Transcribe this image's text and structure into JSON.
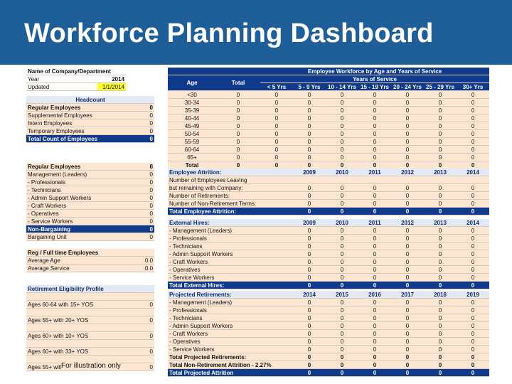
{
  "title": "Workforce Planning Dashboard",
  "watermark": "For illustration only",
  "info": {
    "company_label": "Name of Company/Department",
    "year_label": "Year",
    "year_value": "2014",
    "updated_label": "Updated",
    "updated_value": "1/1/2014"
  },
  "headcount": {
    "header": "Headcount",
    "rows": [
      {
        "label": "Regular Employees",
        "value": "0",
        "bold": true
      },
      {
        "label": "Supplemental Employees",
        "value": "0"
      },
      {
        "label": "Intern Employees",
        "value": "0"
      },
      {
        "label": "Temporary Employees",
        "value": "0"
      },
      {
        "label": "Total Count of Employees",
        "value": "0",
        "total": true
      }
    ]
  },
  "regular_breakdown": {
    "rows": [
      {
        "label": "Regular Employees",
        "value": "0",
        "bold": true
      },
      {
        "label": "   Management (Leaders)",
        "value": "0"
      },
      {
        "label": "- Professionals",
        "value": "0"
      },
      {
        "label": "- Technicians",
        "value": "0"
      },
      {
        "label": "- Admin Support Workers",
        "value": "0"
      },
      {
        "label": "- Craft Workers",
        "value": "0"
      },
      {
        "label": "- Operatives",
        "value": "0"
      },
      {
        "label": "- Service Workers",
        "value": "0"
      },
      {
        "label": "Non-Bargaining",
        "value": "0",
        "highlight": true
      },
      {
        "label": "Bargaining Unit",
        "value": "0"
      }
    ]
  },
  "fulltime": {
    "header": "Reg / Full time Employees",
    "rows": [
      {
        "label": "Average Age",
        "value": "0.0"
      },
      {
        "label": "Average Service",
        "value": "0.0"
      }
    ]
  },
  "retirement_eligibility": {
    "header": "Retirement Eligibility Profile",
    "rows": [
      {
        "label": "Ages 60-64 with 15+ YOS",
        "value": "0"
      },
      {
        "label": "Ages 55+ with 20+ YOS",
        "value": "0"
      },
      {
        "label": "Ages 60+ with 10+ YOS",
        "value": "0"
      },
      {
        "label": "Ages 60+ with 33+ YOS",
        "value": "0"
      },
      {
        "label": "Ages 55+ with 5+ YOS:",
        "value": "0"
      }
    ]
  },
  "workforce": {
    "title": "Employee Workforce by Age and Years of Service",
    "age_header": "Age",
    "total_header": "Total",
    "yos_header": "Years of Service",
    "columns": [
      "< 5 Yrs",
      "5 - 9 Yrs",
      "10 - 14 Yrs",
      "15 - 19 Yrs",
      "20 - 24 Yrs",
      "25 - 29 Yrs",
      "30+ Yrs"
    ],
    "rows": [
      {
        "age": "<30",
        "values": [
          "0",
          "0",
          "0",
          "0",
          "0",
          "0",
          "0",
          "0"
        ]
      },
      {
        "age": "30-34",
        "values": [
          "0",
          "0",
          "0",
          "0",
          "0",
          "0",
          "0",
          "0"
        ]
      },
      {
        "age": "35-39",
        "values": [
          "0",
          "0",
          "0",
          "0",
          "0",
          "0",
          "0",
          "0"
        ]
      },
      {
        "age": "40-44",
        "values": [
          "0",
          "0",
          "0",
          "0",
          "0",
          "0",
          "0",
          "0"
        ]
      },
      {
        "age": "45-49",
        "values": [
          "0",
          "0",
          "0",
          "0",
          "0",
          "0",
          "0",
          "0"
        ]
      },
      {
        "age": "50-54",
        "values": [
          "0",
          "0",
          "0",
          "0",
          "0",
          "0",
          "0",
          "0"
        ]
      },
      {
        "age": "55-59",
        "values": [
          "0",
          "0",
          "0",
          "0",
          "0",
          "0",
          "0",
          "0"
        ]
      },
      {
        "age": "60-64",
        "values": [
          "0",
          "0",
          "0",
          "0",
          "0",
          "0",
          "0",
          "0"
        ]
      },
      {
        "age": "65+",
        "values": [
          "0",
          "0",
          "0",
          "0",
          "0",
          "0",
          "0",
          "0"
        ]
      },
      {
        "age": "Total",
        "values": [
          "0",
          "0",
          "0",
          "0",
          "0",
          "0",
          "0",
          "0"
        ]
      }
    ]
  },
  "attrition": {
    "header": "Employee Attrition:",
    "years": [
      "2009",
      "2010",
      "2011",
      "2012",
      "2013",
      "2014"
    ],
    "rows": [
      {
        "label": "Number of Employees Leaving",
        "values": [
          "",
          "",
          "",
          "",
          "",
          ""
        ]
      },
      {
        "label": " but remaining with Company:",
        "values": [
          "0",
          "0",
          "0",
          "0",
          "0",
          "0"
        ]
      },
      {
        "label": "Number of Retirements:",
        "values": [
          "0",
          "0",
          "0",
          "0",
          "0",
          "0"
        ]
      },
      {
        "label": "Number of Non-Retirement Terms:",
        "values": [
          "0",
          "0",
          "0",
          "0",
          "0",
          "0"
        ]
      }
    ],
    "total": {
      "label": "Total Employee Attrition:",
      "values": [
        "0",
        "0",
        "0",
        "0",
        "0",
        "0"
      ]
    }
  },
  "external_hires": {
    "header": "External Hires:",
    "years": [
      "2009",
      "2010",
      "2011",
      "2012",
      "2013",
      "2014"
    ],
    "rows": [
      {
        "label": "- Management (Leaders)",
        "values": [
          "0",
          "0",
          "0",
          "0",
          "0",
          "0"
        ]
      },
      {
        "label": "- Professionals",
        "values": [
          "0",
          "0",
          "0",
          "0",
          "0",
          "0"
        ]
      },
      {
        "label": "- Technicians",
        "values": [
          "0",
          "0",
          "0",
          "0",
          "0",
          "0"
        ]
      },
      {
        "label": "- Admin Support Workers",
        "values": [
          "0",
          "0",
          "0",
          "0",
          "0",
          "0"
        ]
      },
      {
        "label": "- Craft Workers",
        "values": [
          "0",
          "0",
          "0",
          "0",
          "0",
          "0"
        ]
      },
      {
        "label": "- Operatives",
        "values": [
          "0",
          "0",
          "0",
          "0",
          "0",
          "0"
        ]
      },
      {
        "label": "- Service Workers",
        "values": [
          "0",
          "0",
          "0",
          "0",
          "0",
          "0"
        ]
      }
    ],
    "total": {
      "label": "Total External Hires:",
      "values": [
        "0",
        "0",
        "0",
        "0",
        "0",
        "0"
      ]
    }
  },
  "projected": {
    "header": "Projected Retirements:",
    "years": [
      "2014",
      "2015",
      "2016",
      "2017",
      "2018",
      "2019"
    ],
    "rows": [
      {
        "label": "- Management (Leaders)",
        "values": [
          "0",
          "0",
          "0",
          "0",
          "0",
          "0"
        ]
      },
      {
        "label": "- Professionals",
        "values": [
          "0",
          "0",
          "0",
          "0",
          "0",
          "0"
        ]
      },
      {
        "label": "- Technicians",
        "values": [
          "0",
          "0",
          "0",
          "0",
          "0",
          "0"
        ]
      },
      {
        "label": "- Admin Support Workers",
        "values": [
          "0",
          "0",
          "0",
          "0",
          "0",
          "0"
        ]
      },
      {
        "label": "- Craft Workers",
        "values": [
          "0",
          "0",
          "0",
          "0",
          "0",
          "0"
        ]
      },
      {
        "label": "- Operatives",
        "values": [
          "0",
          "0",
          "0",
          "0",
          "0",
          "0"
        ]
      },
      {
        "label": "- Service Workers",
        "values": [
          "0",
          "0",
          "0",
          "0",
          "0",
          "0"
        ]
      }
    ],
    "total_retire": {
      "label": "Total Projected Retirements:",
      "values": [
        "0",
        "0",
        "0",
        "0",
        "0",
        "0"
      ]
    },
    "total_nonret": {
      "label": "Total Non-Retirement Attrition - 2.27%",
      "values": [
        "0",
        "0",
        "0",
        "0",
        "0",
        "0"
      ]
    },
    "total_attr": {
      "label": "Total Projected Attrition",
      "values": [
        "0",
        "0",
        "0",
        "0",
        "0",
        "0"
      ]
    }
  }
}
